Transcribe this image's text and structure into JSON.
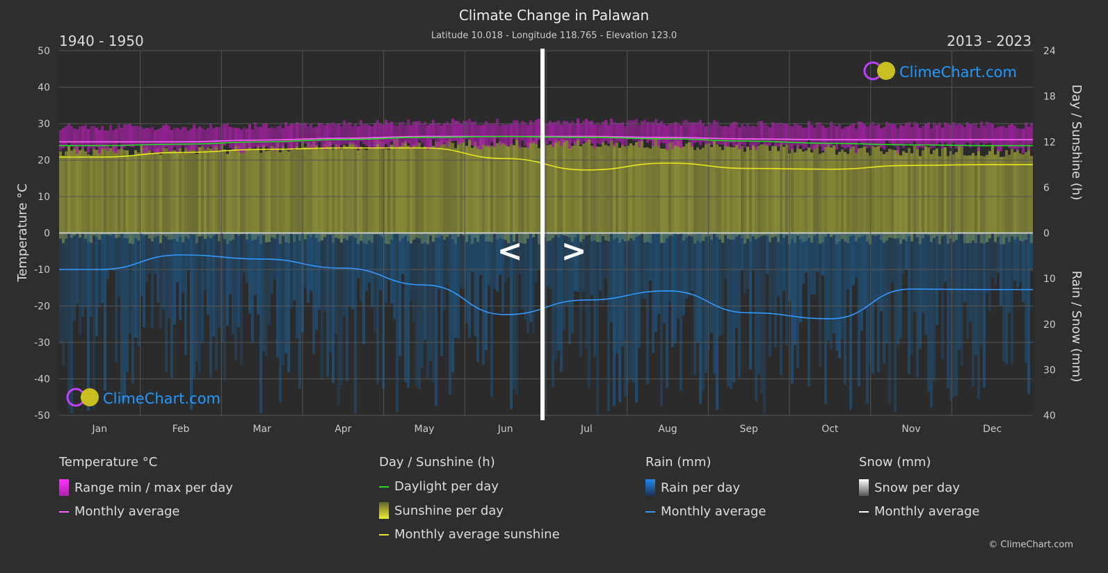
{
  "header": {
    "title": "Climate Change in Palawan",
    "subtitle": "Latitude 10.018 - Longitude 118.765 - Elevation 123.0",
    "period_left": "1940 - 1950",
    "period_right": "2013 - 2023"
  },
  "nav": {
    "prev": "<",
    "next": ">"
  },
  "logo": "ClimeChart.com",
  "copyright": "© ClimeChart.com",
  "chart_data": {
    "type": "line",
    "categories": [
      "Jan",
      "Feb",
      "Mar",
      "Apr",
      "May",
      "Jun",
      "Jul",
      "Aug",
      "Sep",
      "Oct",
      "Nov",
      "Dec"
    ],
    "y_left": {
      "label": "Temperature °C",
      "range": [
        -50,
        50
      ],
      "ticks": [
        50,
        40,
        30,
        20,
        10,
        0,
        -10,
        -20,
        -30,
        -40,
        -50
      ]
    },
    "y_right_top": {
      "label": "Day / Sunshine (h)",
      "range": [
        0,
        24
      ],
      "ticks": [
        24,
        18,
        12,
        6,
        0
      ]
    },
    "y_right_bottom": {
      "label": "Rain / Snow (mm)",
      "range": [
        0,
        40
      ],
      "ticks": [
        0,
        10,
        20,
        30,
        40
      ]
    },
    "grid": true,
    "series": [
      {
        "name": "Monthly average",
        "group": "temperature",
        "color": "#ff66ff",
        "values": [
          25.0,
          25.0,
          25.5,
          26.0,
          26.5,
          26.5,
          26.5,
          26.2,
          25.8,
          25.6,
          25.6,
          25.6
        ]
      },
      {
        "name": "Daylight per day",
        "group": "sunshine",
        "color": "#22dd22",
        "values": [
          11.5,
          11.7,
          12.0,
          12.3,
          12.6,
          12.7,
          12.6,
          12.4,
          12.1,
          11.8,
          11.6,
          11.5
        ]
      },
      {
        "name": "Monthly average sunshine",
        "group": "sunshine",
        "color": "#e8e820",
        "values": [
          10.0,
          10.6,
          11.0,
          11.2,
          11.2,
          9.8,
          8.3,
          9.2,
          8.5,
          8.4,
          8.9,
          9.0
        ]
      },
      {
        "name": "Monthly average",
        "group": "rain",
        "color": "#3399ff",
        "values": [
          8.0,
          4.8,
          5.7,
          7.7,
          11.4,
          17.9,
          14.7,
          12.7,
          17.5,
          18.8,
          12.3,
          12.4
        ]
      }
    ]
  },
  "legend": {
    "temp": {
      "title": "Temperature °C",
      "items": [
        "Range min / max per day",
        "Monthly average"
      ]
    },
    "sun": {
      "title": "Day / Sunshine (h)",
      "items": [
        "Daylight per day",
        "Sunshine per day",
        "Monthly average sunshine"
      ]
    },
    "rain": {
      "title": "Rain (mm)",
      "items": [
        "Rain per day",
        "Monthly average"
      ]
    },
    "snow": {
      "title": "Snow (mm)",
      "items": [
        "Snow per day",
        "Monthly average"
      ]
    }
  }
}
